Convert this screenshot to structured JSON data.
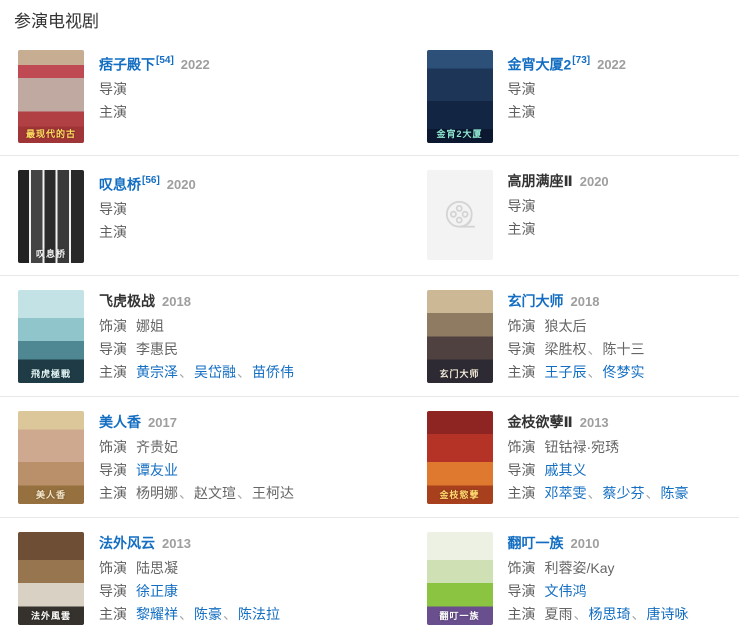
{
  "page": {
    "section_title": "参演电视剧"
  },
  "separator": "、",
  "link_color": "#136ec2",
  "divider_color": "#e9e9e9",
  "entries": [
    {
      "title": "痞子殿下",
      "title_is_link": true,
      "ref": "[54]",
      "year": "2022",
      "poster": {
        "type": "image",
        "direction": "180deg",
        "colors": [
          "#c7ad92 0 16%",
          "#c04a54 16% 30%",
          "#c0a9a0 30% 66%",
          "#b04043 66% 82%",
          "#a03537 82% 100%"
        ],
        "label": "最现代的古",
        "label_color": "#ffdf5e"
      },
      "fields": [
        {
          "label": "导演",
          "items": []
        },
        {
          "label": "主演",
          "items": []
        }
      ]
    },
    {
      "title": "金宵大厦2",
      "title_is_link": true,
      "ref": "[73]",
      "year": "2022",
      "poster": {
        "type": "image",
        "direction": "180deg",
        "colors": [
          "#2c5078 0 20%",
          "#1d3657 20% 55%",
          "#122543 55% 85%",
          "#0b1830 85% 100%"
        ],
        "label": "金宵2大厦",
        "label_color": "#8ee6d2"
      },
      "fields": [
        {
          "label": "导演",
          "items": []
        },
        {
          "label": "主演",
          "items": []
        }
      ]
    },
    {
      "title": "叹息桥",
      "title_is_link": true,
      "ref": "[56]",
      "year": "2020",
      "poster": {
        "type": "image",
        "direction": "90deg",
        "colors": [
          "#222222 0 17%",
          "#f2f2f2 17% 20%",
          "#444444 20% 37%",
          "#f2f2f2 37% 40%",
          "#2b2b2b 40% 57%",
          "#f2f2f2 57% 60%",
          "#3a3a3a 60% 77%",
          "#f2f2f2 77% 80%",
          "#282828 80% 100%"
        ],
        "label": "叹息桥",
        "label_color": "#f0f0f0"
      },
      "fields": [
        {
          "label": "导演",
          "items": []
        },
        {
          "label": "主演",
          "items": []
        }
      ]
    },
    {
      "title": "高朋满座Ⅱ",
      "title_is_link": false,
      "ref": "",
      "year": "2020",
      "poster": {
        "type": "placeholder"
      },
      "fields": [
        {
          "label": "导演",
          "items": []
        },
        {
          "label": "主演",
          "items": []
        }
      ]
    },
    {
      "title": "飞虎极战",
      "title_is_link": false,
      "ref": "",
      "year": "2018",
      "poster": {
        "type": "image",
        "direction": "180deg",
        "colors": [
          "#c2e2e5 0 30%",
          "#90c5cc 30% 55%",
          "#4f8793 55% 75%",
          "#1f3c46 75% 100%"
        ],
        "label": "飛虎極戰",
        "label_color": "#dff3f4"
      },
      "fields": [
        {
          "label": "饰演",
          "items": [
            {
              "text": "娜姐",
              "link": false
            }
          ]
        },
        {
          "label": "导演",
          "items": [
            {
              "text": "李惠民",
              "link": false
            }
          ]
        },
        {
          "label": "主演",
          "items": [
            {
              "text": "黄宗泽",
              "link": true
            },
            {
              "text": "吴岱融",
              "link": true
            },
            {
              "text": "苗侨伟",
              "link": true
            }
          ]
        }
      ]
    },
    {
      "title": "玄门大师",
      "title_is_link": true,
      "ref": "",
      "year": "2018",
      "poster": {
        "type": "image",
        "direction": "180deg",
        "colors": [
          "#cdb896 0 25%",
          "#8f7a62 25% 50%",
          "#4f4140 50% 75%",
          "#2d2a33 75% 100%"
        ],
        "label": "玄门大师",
        "label_color": "#f2ead8"
      },
      "fields": [
        {
          "label": "饰演",
          "items": [
            {
              "text": "狼太后",
              "link": false
            }
          ]
        },
        {
          "label": "导演",
          "items": [
            {
              "text": "梁胜权",
              "link": false
            },
            {
              "text": "陈十三",
              "link": false
            }
          ]
        },
        {
          "label": "主演",
          "items": [
            {
              "text": "王子辰",
              "link": true
            },
            {
              "text": "佟梦实",
              "link": true
            }
          ]
        }
      ]
    },
    {
      "title": "美人香",
      "title_is_link": true,
      "ref": "",
      "year": "2017",
      "poster": {
        "type": "image",
        "direction": "180deg",
        "colors": [
          "#dcc79b 0 20%",
          "#cfa98f 20% 55%",
          "#b9906a 55% 80%",
          "#96713f 80% 100%"
        ],
        "label": "美人香",
        "label_color": "#f5e6c8"
      },
      "fields": [
        {
          "label": "饰演",
          "items": [
            {
              "text": "齐贵妃",
              "link": false
            }
          ]
        },
        {
          "label": "导演",
          "items": [
            {
              "text": "谭友业",
              "link": true
            }
          ]
        },
        {
          "label": "主演",
          "items": [
            {
              "text": "杨明娜",
              "link": false
            },
            {
              "text": "赵文瑄",
              "link": false
            },
            {
              "text": "王柯达",
              "link": false
            }
          ]
        }
      ]
    },
    {
      "title": "金枝欲孽Ⅱ",
      "title_is_link": false,
      "ref": "",
      "year": "2013",
      "poster": {
        "type": "image",
        "direction": "180deg",
        "colors": [
          "#8e2522 0 25%",
          "#b53226 25% 55%",
          "#df7930 55% 80%",
          "#a8401d 80% 100%"
        ],
        "label": "金枝慾孽",
        "label_color": "#ffd76e"
      },
      "fields": [
        {
          "label": "饰演",
          "items": [
            {
              "text": "钮钴禄·宛琇",
              "link": false
            }
          ]
        },
        {
          "label": "导演",
          "items": [
            {
              "text": "戚其义",
              "link": true
            }
          ]
        },
        {
          "label": "主演",
          "items": [
            {
              "text": "邓萃雯",
              "link": true
            },
            {
              "text": "蔡少芬",
              "link": true
            },
            {
              "text": "陈豪",
              "link": true
            }
          ]
        }
      ]
    },
    {
      "title": "法外风云",
      "title_is_link": true,
      "ref": "",
      "year": "2013",
      "poster": {
        "type": "image",
        "direction": "180deg",
        "colors": [
          "#6e4f35 0 30%",
          "#97764f 30% 55%",
          "#d8d1c4 55% 80%",
          "#35312c 80% 100%"
        ],
        "label": "法外風雲",
        "label_color": "#ffffff"
      },
      "fields": [
        {
          "label": "饰演",
          "items": [
            {
              "text": "陆思凝",
              "link": false
            }
          ]
        },
        {
          "label": "导演",
          "items": [
            {
              "text": "徐正康",
              "link": true
            }
          ]
        },
        {
          "label": "主演",
          "items": [
            {
              "text": "黎耀祥",
              "link": true
            },
            {
              "text": "陈豪",
              "link": true
            },
            {
              "text": "陈法拉",
              "link": true
            }
          ]
        }
      ]
    },
    {
      "title": "翻叮一族",
      "title_is_link": true,
      "ref": "",
      "year": "2010",
      "poster": {
        "type": "image",
        "direction": "180deg",
        "colors": [
          "#edf1e3 0 30%",
          "#cfe0b4 30% 55%",
          "#8bc441 55% 80%",
          "#6a4f8f 80% 100%"
        ],
        "label": "翻叮一族",
        "label_color": "#ffffff"
      },
      "fields": [
        {
          "label": "饰演",
          "items": [
            {
              "text": "利蓉姿/Kay",
              "link": false
            }
          ]
        },
        {
          "label": "导演",
          "items": [
            {
              "text": "文伟鸿",
              "link": true
            }
          ]
        },
        {
          "label": "主演",
          "items": [
            {
              "text": "夏雨",
              "link": false
            },
            {
              "text": "杨思琦",
              "link": true
            },
            {
              "text": "唐诗咏",
              "link": true
            }
          ]
        }
      ]
    }
  ]
}
